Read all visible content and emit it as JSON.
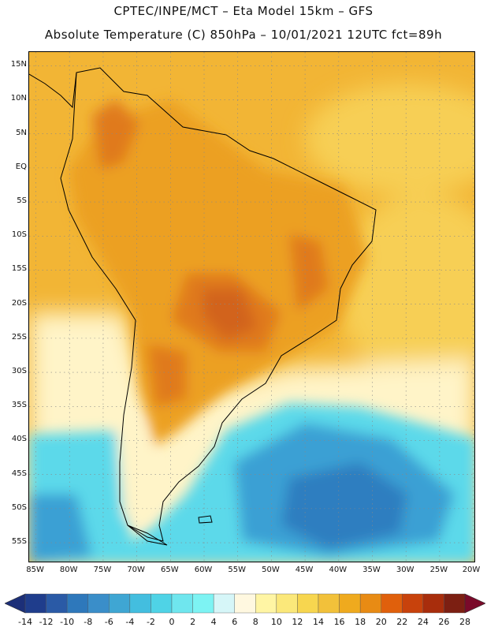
{
  "header": {
    "line1": "CPTEC/INPE/MCT –  Eta Model 15km – GFS",
    "line2": "Absolute Temperature (C) 850hPa – 10/01/2021 12UTC fct=89h"
  },
  "axes": {
    "lat_labels": [
      "15N",
      "10N",
      "5N",
      "EQ",
      "5S",
      "10S",
      "15S",
      "20S",
      "25S",
      "30S",
      "35S",
      "40S",
      "45S",
      "50S",
      "55S"
    ],
    "lat_values": [
      15,
      10,
      5,
      0,
      -5,
      -10,
      -15,
      -20,
      -25,
      -30,
      -35,
      -40,
      -45,
      -50,
      -55
    ],
    "lon_labels": [
      "85W",
      "80W",
      "75W",
      "70W",
      "65W",
      "60W",
      "55W",
      "50W",
      "45W",
      "40W",
      "35W",
      "30W",
      "25W",
      "20W"
    ],
    "lon_values": [
      -85,
      -80,
      -75,
      -70,
      -65,
      -60,
      -55,
      -50,
      -45,
      -40,
      -35,
      -30,
      -25,
      -20
    ],
    "lat_range": [
      -58,
      17
    ],
    "lon_range": [
      -86,
      -19.6
    ]
  },
  "colorbar": {
    "labels": [
      "-14",
      "-12",
      "-10",
      "-8",
      "-6",
      "-4",
      "-2",
      "0",
      "2",
      "4",
      "6",
      "8",
      "10",
      "12",
      "14",
      "16",
      "18",
      "20",
      "22",
      "24",
      "26",
      "28"
    ],
    "colors": [
      "#1f3d8c",
      "#2a5aa6",
      "#2e78bb",
      "#3a8ec9",
      "#3fa6d3",
      "#43bedf",
      "#4fd3e6",
      "#6fe6ee",
      "#7df3f3",
      "#d6f6f8",
      "#fff8e0",
      "#fff5a4",
      "#fbe87a",
      "#f7d64f",
      "#f2c13a",
      "#efaa1e",
      "#e88b14",
      "#e0600c",
      "#c8420c",
      "#a82d0c",
      "#7c1f12"
    ],
    "extend_min_color": "#1c2f78",
    "extend_max_color": "#7a0a2a"
  },
  "colors": {
    "ocean_north": "#f2b535",
    "land_warm": "#eca024",
    "hot": "#e07a1c",
    "hottest": "#d2631a",
    "pale": "#fff4c8",
    "cyan": "#5cd9ea",
    "blue": "#3aa0d4",
    "dark_blue": "#2e7ec0"
  }
}
